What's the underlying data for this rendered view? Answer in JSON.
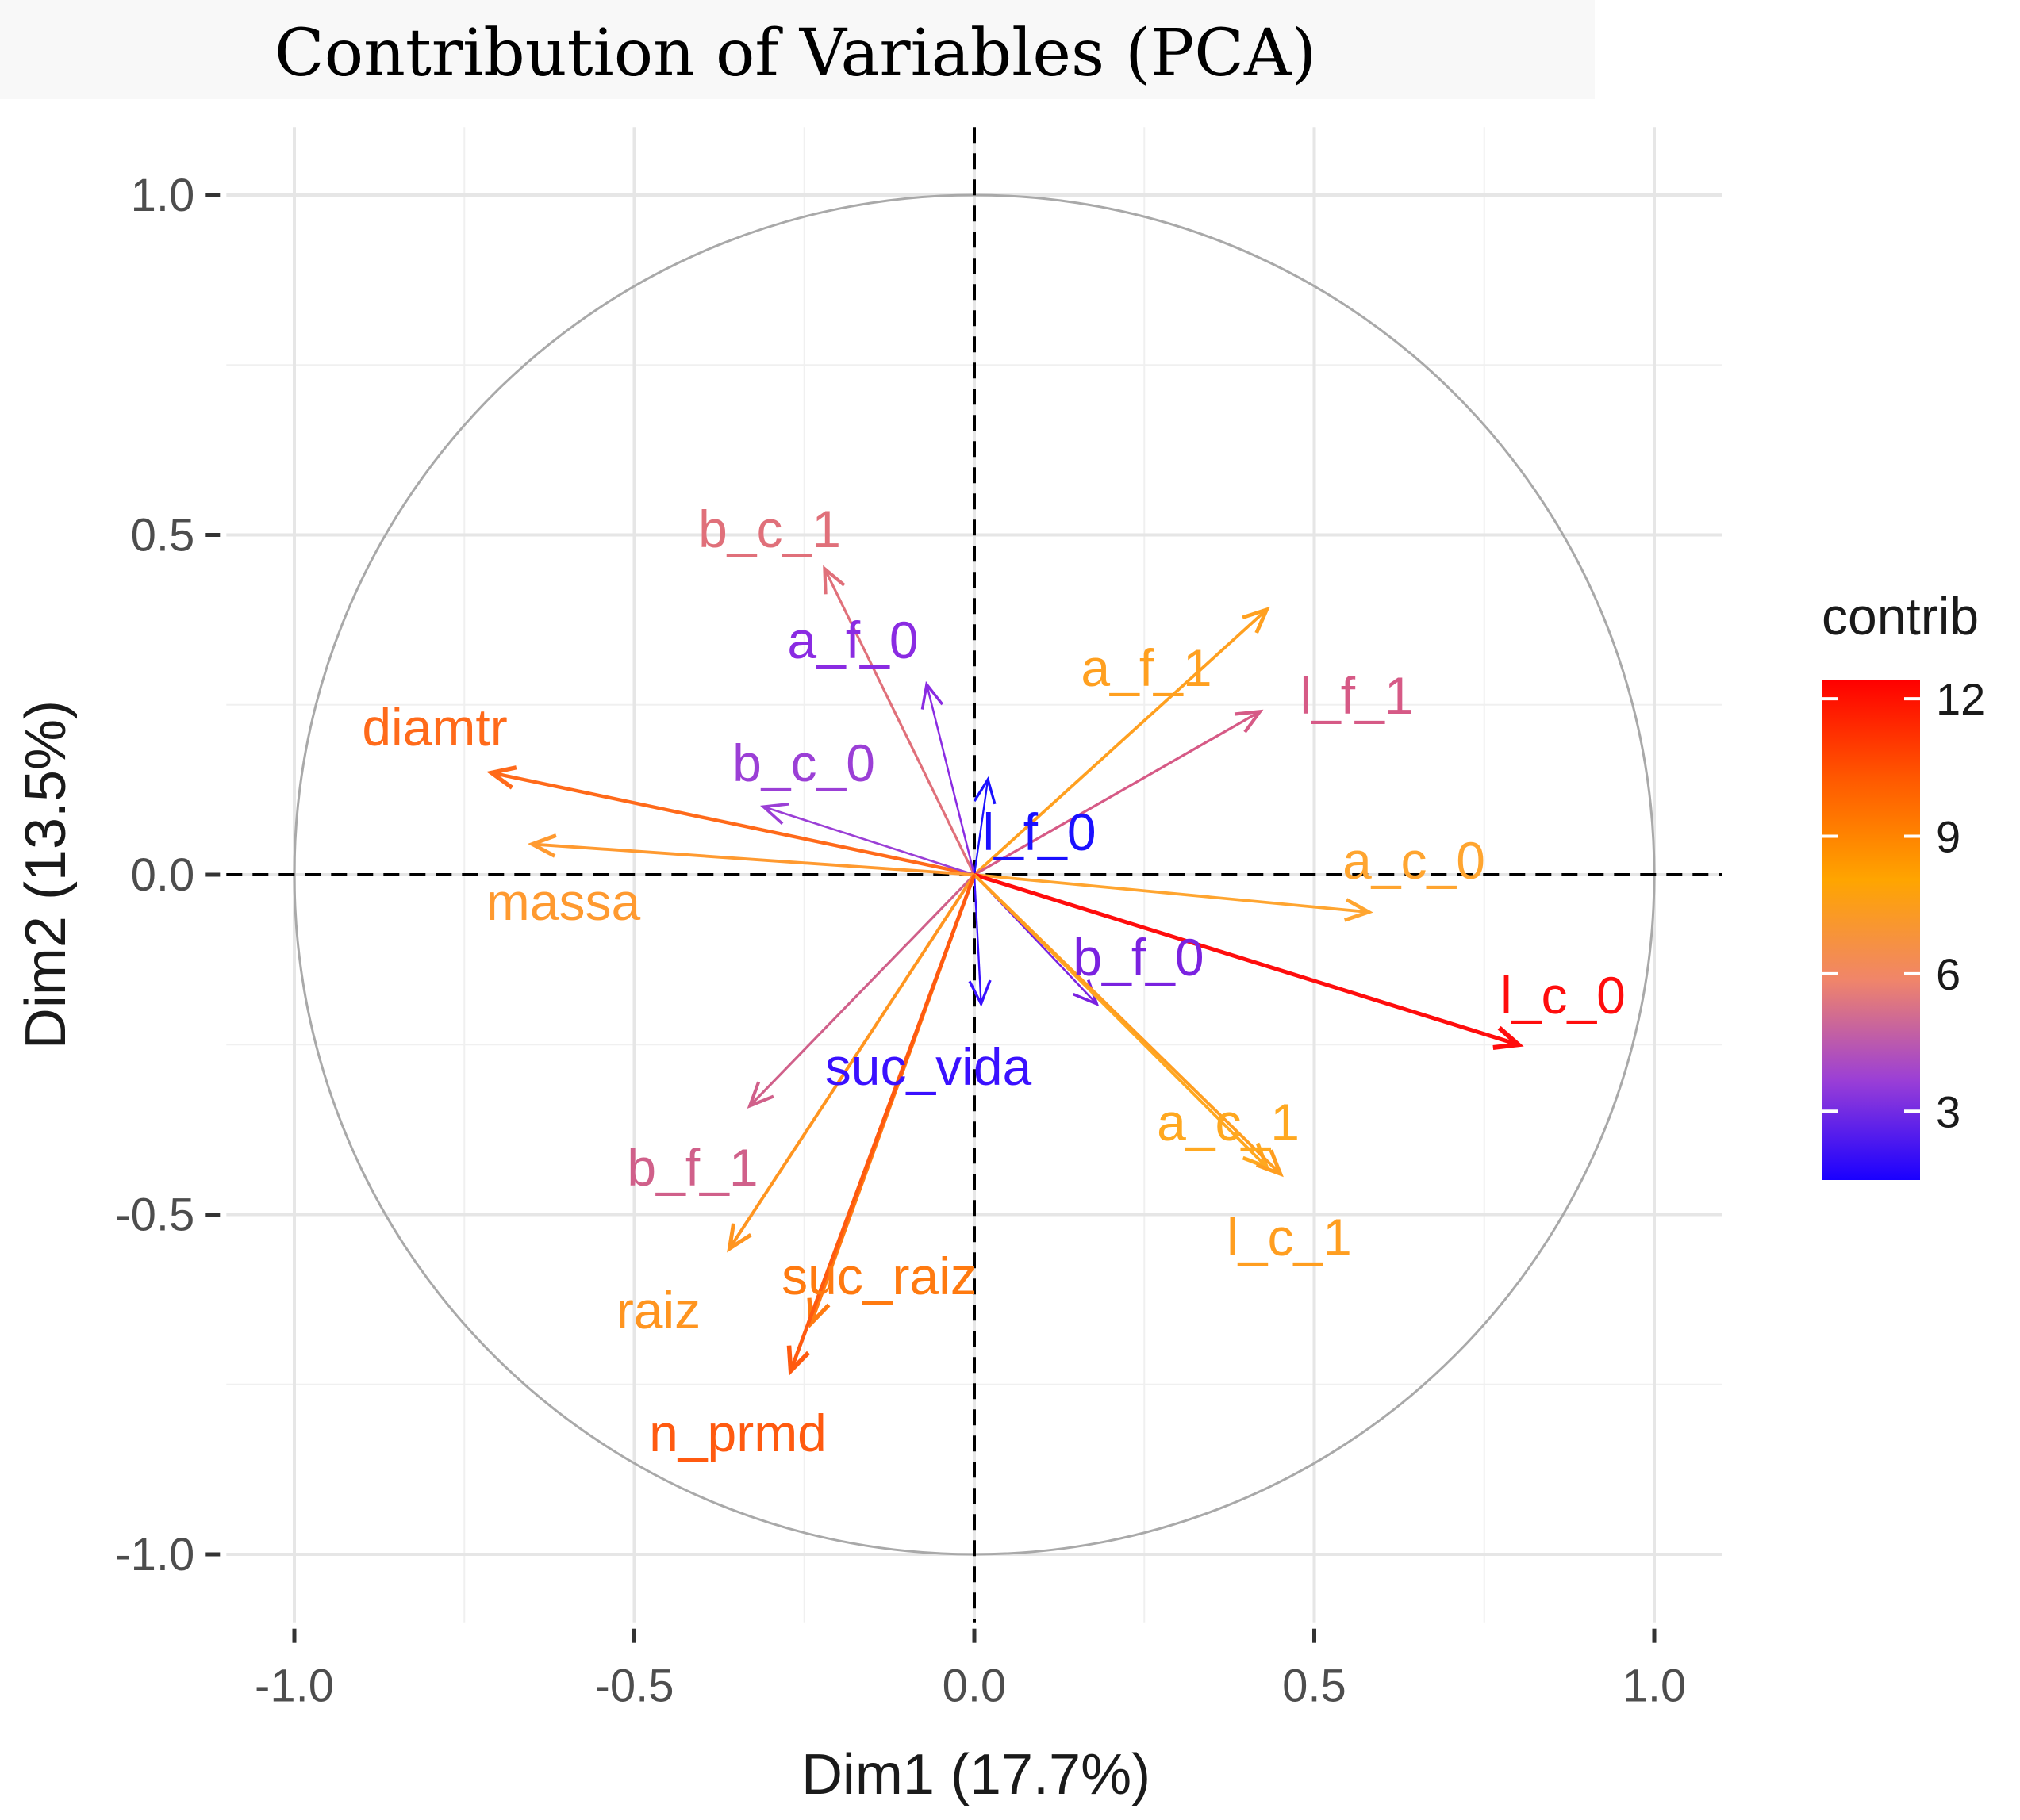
{
  "chart_data": {
    "type": "pca-variable-correlation-circle",
    "title": "Contribution of Variables (PCA)",
    "xlabel": "Dim1 (17.7%)",
    "ylabel": "Dim2 (13.5%)",
    "xlim": [
      -1.1,
      1.1
    ],
    "ylim": [
      -1.1,
      1.1
    ],
    "xticks": [
      -1.0,
      -0.5,
      0.0,
      0.5,
      1.0
    ],
    "yticks": [
      1.0,
      0.5,
      0.0,
      -0.5,
      -1.0
    ],
    "xtick_labels": [
      "-1.0",
      "-0.5",
      "0.0",
      "0.5",
      "1.0"
    ],
    "ytick_labels": [
      "1.0",
      "0.5",
      "0.0",
      "-0.5",
      "-1.0"
    ],
    "grid": true,
    "legend": {
      "title": "contrib",
      "position": "right",
      "ticks": [
        "12",
        "9",
        "6",
        "3"
      ],
      "tick_values": [
        12,
        9,
        6,
        3
      ],
      "range": [
        1.5,
        12.4
      ],
      "colors": [
        "#1a00ff",
        "#9b3fd6",
        "#f0856a",
        "#ffa500",
        "#ff5a00",
        "#ff0000"
      ]
    },
    "variables": [
      {
        "name": "b_c_1",
        "x": -0.22,
        "y": 0.45,
        "contrib": 4.8,
        "color": "#e0707a"
      },
      {
        "name": "a_f_0",
        "x": -0.07,
        "y": 0.28,
        "contrib": 2.0,
        "color": "#8a2be2"
      },
      {
        "name": "diamtr",
        "x": -0.71,
        "y": 0.15,
        "contrib": 9.6,
        "color": "#ff6a1a"
      },
      {
        "name": "b_c_0",
        "x": -0.31,
        "y": 0.1,
        "contrib": 2.6,
        "color": "#9b3fd6"
      },
      {
        "name": "massa",
        "x": -0.65,
        "y": 0.045,
        "contrib": 7.5,
        "color": "#ff9a30"
      },
      {
        "name": "a_f_1",
        "x": 0.43,
        "y": 0.39,
        "contrib": 7.2,
        "color": "#ffa020"
      },
      {
        "name": "l_f_1",
        "x": 0.42,
        "y": 0.24,
        "contrib": 4.9,
        "color": "#d65a86"
      },
      {
        "name": "l_f_0",
        "x": 0.02,
        "y": 0.14,
        "contrib": 1.2,
        "color": "#1a10ff"
      },
      {
        "name": "a_c_0",
        "x": 0.58,
        "y": -0.055,
        "contrib": 6.8,
        "color": "#ffa530"
      },
      {
        "name": "b_f_0",
        "x": 0.18,
        "y": -0.19,
        "contrib": 2.2,
        "color": "#7a22e0"
      },
      {
        "name": "l_c_0",
        "x": 0.8,
        "y": -0.25,
        "contrib": 12.0,
        "color": "#ff0d0d"
      },
      {
        "name": "suc_vida",
        "x": 0.01,
        "y": -0.19,
        "contrib": 1.4,
        "color": "#3a10ff"
      },
      {
        "name": "a_c_1",
        "x": 0.43,
        "y": -0.43,
        "contrib": 7.0,
        "color": "#ffa820"
      },
      {
        "name": "l_c_1",
        "x": 0.45,
        "y": -0.44,
        "contrib": 7.4,
        "color": "#ff9e20"
      },
      {
        "name": "b_f_1",
        "x": -0.33,
        "y": -0.34,
        "contrib": 4.6,
        "color": "#d0608a"
      },
      {
        "name": "raiz",
        "x": -0.36,
        "y": -0.55,
        "contrib": 7.9,
        "color": "#ff9520"
      },
      {
        "name": "suc_raiz",
        "x": -0.24,
        "y": -0.66,
        "contrib": 8.9,
        "color": "#ff7a10"
      },
      {
        "name": "n_prmd",
        "x": -0.27,
        "y": -0.73,
        "contrib": 10.4,
        "color": "#ff5a10"
      }
    ]
  }
}
